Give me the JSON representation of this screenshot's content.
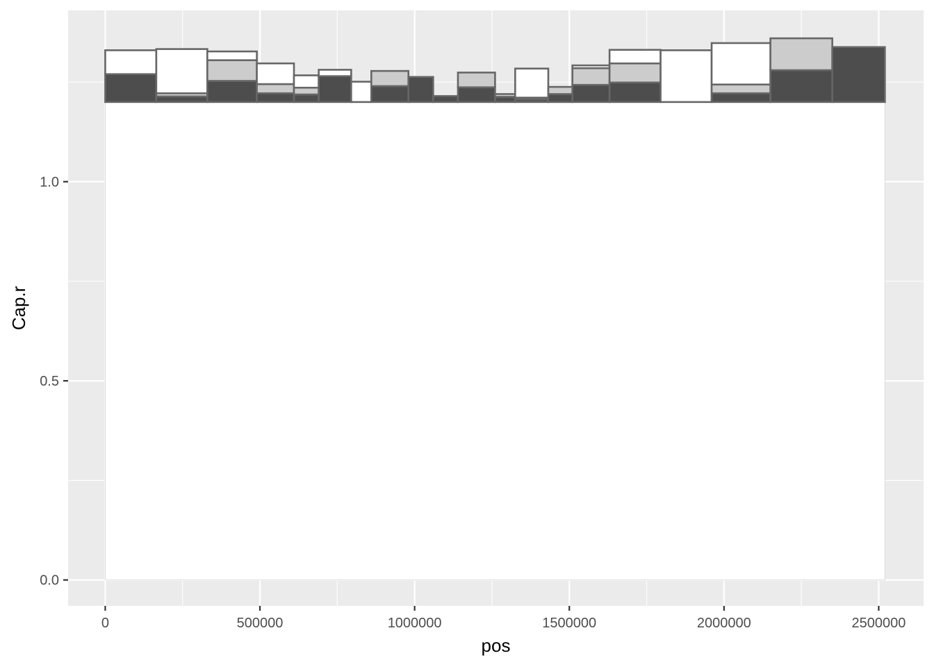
{
  "chart_data": {
    "type": "bar",
    "title": "",
    "xlabel": "pos",
    "ylabel": "Cap.r",
    "xlim": [
      -120000,
      2645000
    ],
    "ylim": [
      -0.065,
      1.43
    ],
    "x_ticks": [
      {
        "value": 0,
        "label": "0"
      },
      {
        "value": 500000,
        "label": "500000"
      },
      {
        "value": 1000000,
        "label": "1000000"
      },
      {
        "value": 1500000,
        "label": "1500000"
      },
      {
        "value": 2000000,
        "label": "2000000"
      },
      {
        "value": 2500000,
        "label": "2500000"
      }
    ],
    "y_ticks": [
      {
        "value": 0.0,
        "label": "0.0"
      },
      {
        "value": 0.5,
        "label": "0.5"
      },
      {
        "value": 1.0,
        "label": "1.0"
      }
    ],
    "grid": true,
    "legend": "none",
    "panel_rect": {
      "x0": 0,
      "x1": 2520000,
      "y0": 0,
      "y1": 1.2
    },
    "rects": [
      {
        "xmin": 0,
        "xmax": 165000,
        "ymin": 1.2,
        "ymax": 1.27,
        "fill": "#4d4d4d"
      },
      {
        "xmin": 0,
        "xmax": 165000,
        "ymin": 1.27,
        "ymax": 1.33,
        "fill": "#ffffff"
      },
      {
        "xmin": 165000,
        "xmax": 330000,
        "ymin": 1.2,
        "ymax": 1.214,
        "fill": "#4d4d4d"
      },
      {
        "xmin": 165000,
        "xmax": 330000,
        "ymin": 1.214,
        "ymax": 1.222,
        "fill": "#cccccc"
      },
      {
        "xmin": 165000,
        "xmax": 330000,
        "ymin": 1.222,
        "ymax": 1.333,
        "fill": "#ffffff"
      },
      {
        "xmin": 330000,
        "xmax": 490000,
        "ymin": 1.2,
        "ymax": 1.253,
        "fill": "#4d4d4d"
      },
      {
        "xmin": 330000,
        "xmax": 490000,
        "ymin": 1.253,
        "ymax": 1.305,
        "fill": "#cccccc"
      },
      {
        "xmin": 330000,
        "xmax": 490000,
        "ymin": 1.305,
        "ymax": 1.327,
        "fill": "#ffffff"
      },
      {
        "xmin": 490000,
        "xmax": 610000,
        "ymin": 1.2,
        "ymax": 1.222,
        "fill": "#4d4d4d"
      },
      {
        "xmin": 490000,
        "xmax": 610000,
        "ymin": 1.222,
        "ymax": 1.245,
        "fill": "#cccccc"
      },
      {
        "xmin": 490000,
        "xmax": 610000,
        "ymin": 1.245,
        "ymax": 1.297,
        "fill": "#ffffff"
      },
      {
        "xmin": 610000,
        "xmax": 690000,
        "ymin": 1.2,
        "ymax": 1.219,
        "fill": "#4d4d4d"
      },
      {
        "xmin": 610000,
        "xmax": 690000,
        "ymin": 1.219,
        "ymax": 1.236,
        "fill": "#cccccc"
      },
      {
        "xmin": 610000,
        "xmax": 690000,
        "ymin": 1.236,
        "ymax": 1.267,
        "fill": "#ffffff"
      },
      {
        "xmin": 690000,
        "xmax": 795000,
        "ymin": 1.2,
        "ymax": 1.265,
        "fill": "#4d4d4d"
      },
      {
        "xmin": 690000,
        "xmax": 795000,
        "ymin": 1.265,
        "ymax": 1.281,
        "fill": "#ffffff"
      },
      {
        "xmin": 795000,
        "xmax": 860000,
        "ymin": 1.2,
        "ymax": 1.251,
        "fill": "#ffffff"
      },
      {
        "xmin": 860000,
        "xmax": 980000,
        "ymin": 1.2,
        "ymax": 1.24,
        "fill": "#4d4d4d"
      },
      {
        "xmin": 860000,
        "xmax": 980000,
        "ymin": 1.24,
        "ymax": 1.278,
        "fill": "#cccccc"
      },
      {
        "xmin": 980000,
        "xmax": 1060000,
        "ymin": 1.2,
        "ymax": 1.263,
        "fill": "#4d4d4d"
      },
      {
        "xmin": 1060000,
        "xmax": 1140000,
        "ymin": 1.2,
        "ymax": 1.215,
        "fill": "#4d4d4d"
      },
      {
        "xmin": 1140000,
        "xmax": 1260000,
        "ymin": 1.2,
        "ymax": 1.237,
        "fill": "#4d4d4d"
      },
      {
        "xmin": 1140000,
        "xmax": 1260000,
        "ymin": 1.237,
        "ymax": 1.274,
        "fill": "#cccccc"
      },
      {
        "xmin": 1260000,
        "xmax": 1325000,
        "ymin": 1.2,
        "ymax": 1.213,
        "fill": "#4d4d4d"
      },
      {
        "xmin": 1260000,
        "xmax": 1325000,
        "ymin": 1.213,
        "ymax": 1.22,
        "fill": "#cccccc"
      },
      {
        "xmin": 1325000,
        "xmax": 1432000,
        "ymin": 1.2,
        "ymax": 1.207,
        "fill": "#4d4d4d"
      },
      {
        "xmin": 1325000,
        "xmax": 1432000,
        "ymin": 1.207,
        "ymax": 1.211,
        "fill": "#cccccc"
      },
      {
        "xmin": 1325000,
        "xmax": 1432000,
        "ymin": 1.211,
        "ymax": 1.284,
        "fill": "#ffffff"
      },
      {
        "xmin": 1432000,
        "xmax": 1510000,
        "ymin": 1.2,
        "ymax": 1.22,
        "fill": "#4d4d4d"
      },
      {
        "xmin": 1432000,
        "xmax": 1510000,
        "ymin": 1.22,
        "ymax": 1.238,
        "fill": "#cccccc"
      },
      {
        "xmin": 1510000,
        "xmax": 1630000,
        "ymin": 1.2,
        "ymax": 1.243,
        "fill": "#4d4d4d"
      },
      {
        "xmin": 1510000,
        "xmax": 1630000,
        "ymin": 1.243,
        "ymax": 1.285,
        "fill": "#cccccc"
      },
      {
        "xmin": 1510000,
        "xmax": 1630000,
        "ymin": 1.285,
        "ymax": 1.292,
        "fill": "#ffffff"
      },
      {
        "xmin": 1630000,
        "xmax": 1795000,
        "ymin": 1.2,
        "ymax": 1.249,
        "fill": "#4d4d4d"
      },
      {
        "xmin": 1630000,
        "xmax": 1795000,
        "ymin": 1.249,
        "ymax": 1.297,
        "fill": "#cccccc"
      },
      {
        "xmin": 1630000,
        "xmax": 1795000,
        "ymin": 1.297,
        "ymax": 1.331,
        "fill": "#ffffff"
      },
      {
        "xmin": 1795000,
        "xmax": 1960000,
        "ymin": 1.2,
        "ymax": 1.33,
        "fill": "#ffffff"
      },
      {
        "xmin": 1960000,
        "xmax": 2150000,
        "ymin": 1.2,
        "ymax": 1.222,
        "fill": "#4d4d4d"
      },
      {
        "xmin": 1960000,
        "xmax": 2150000,
        "ymin": 1.222,
        "ymax": 1.244,
        "fill": "#cccccc"
      },
      {
        "xmin": 1960000,
        "xmax": 2150000,
        "ymin": 1.244,
        "ymax": 1.348,
        "fill": "#ffffff"
      },
      {
        "xmin": 2150000,
        "xmax": 2350000,
        "ymin": 1.2,
        "ymax": 1.28,
        "fill": "#4d4d4d"
      },
      {
        "xmin": 2150000,
        "xmax": 2350000,
        "ymin": 1.28,
        "ymax": 1.36,
        "fill": "#cccccc"
      },
      {
        "xmin": 2350000,
        "xmax": 2520000,
        "ymin": 1.2,
        "ymax": 1.338,
        "fill": "#4d4d4d"
      }
    ]
  }
}
